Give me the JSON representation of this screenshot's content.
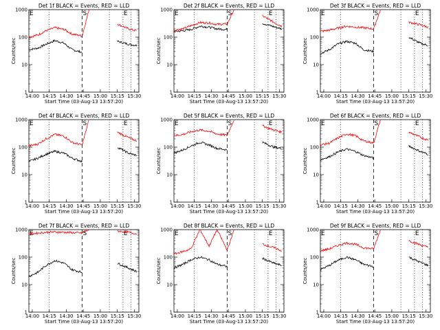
{
  "figure": {
    "xlabel": "Start Time (03-Aug-13 13:57:20)",
    "ylabel": "Counts/sec",
    "x_ticks": [
      "14:00",
      "14:15",
      "14:30",
      "14:45",
      "15:00",
      "15:15",
      "15:30"
    ],
    "y_ticks": [
      "1",
      "10",
      "100",
      "1000"
    ],
    "markers": [
      {
        "label": "E",
        "time": "13:57"
      },
      {
        "label": "S",
        "time": "14:44"
      },
      {
        "label": "E",
        "time": "15:20"
      }
    ],
    "colors": {
      "events": "#000000",
      "lld": "#ff0000",
      "axes": "#000000"
    }
  },
  "chart_data": [
    {
      "type": "line",
      "title": "Det 1f BLACK = Events, RED = LLD",
      "x": [
        "13:57",
        "14:05",
        "14:12",
        "14:20",
        "14:28",
        "14:35",
        "14:44",
        "14:50",
        "15:10",
        "15:15",
        "15:25",
        "15:32"
      ],
      "series": [
        {
          "name": "Events",
          "values": [
            35,
            40,
            55,
            75,
            60,
            35,
            28,
            null,
            null,
            70,
            55,
            50
          ]
        },
        {
          "name": "LLD",
          "values": [
            100,
            120,
            170,
            220,
            190,
            130,
            110,
            1000,
            null,
            300,
            200,
            170
          ]
        }
      ],
      "ylim": [
        1,
        1000
      ],
      "yscale": "log"
    },
    {
      "type": "line",
      "title": "Det 2f BLACK = Events, RED = LLD",
      "x": [
        "13:57",
        "14:05",
        "14:12",
        "14:20",
        "14:28",
        "14:35",
        "14:44",
        "14:50",
        "15:10",
        "15:15",
        "15:25",
        "15:32"
      ],
      "series": [
        {
          "name": "Events",
          "values": [
            160,
            170,
            190,
            250,
            230,
            200,
            190,
            null,
            null,
            320,
            240,
            200
          ]
        },
        {
          "name": "LLD",
          "values": [
            180,
            200,
            260,
            340,
            330,
            290,
            300,
            1000,
            null,
            600,
            350,
            250
          ]
        }
      ],
      "ylim": [
        1,
        1000
      ],
      "yscale": "log"
    },
    {
      "type": "line",
      "title": "Det 3f BLACK = Events, RED = LLD",
      "x": [
        "13:57",
        "14:05",
        "14:12",
        "14:20",
        "14:28",
        "14:35",
        "14:44",
        "14:50",
        "15:10",
        "15:15",
        "15:25",
        "15:32"
      ],
      "series": [
        {
          "name": "Events",
          "values": [
            25,
            35,
            55,
            70,
            60,
            35,
            30,
            null,
            null,
            100,
            60,
            50
          ]
        },
        {
          "name": "LLD",
          "values": [
            160,
            180,
            210,
            250,
            230,
            220,
            200,
            1000,
            null,
            350,
            280,
            230
          ]
        }
      ],
      "ylim": [
        1,
        1000
      ],
      "yscale": "log"
    },
    {
      "type": "line",
      "title": "Det 4f BLACK = Events, RED = LLD",
      "x": [
        "13:57",
        "14:05",
        "14:12",
        "14:20",
        "14:28",
        "14:35",
        "14:44",
        "14:50",
        "15:10",
        "15:15",
        "15:25",
        "15:32"
      ],
      "series": [
        {
          "name": "Events",
          "values": [
            30,
            40,
            55,
            70,
            60,
            40,
            30,
            null,
            null,
            100,
            60,
            50
          ]
        },
        {
          "name": "LLD",
          "values": [
            110,
            130,
            200,
            290,
            250,
            150,
            120,
            1000,
            null,
            350,
            220,
            170
          ]
        }
      ],
      "ylim": [
        1,
        1000
      ],
      "yscale": "log"
    },
    {
      "type": "line",
      "title": "Det 5f BLACK = Events, RED = LLD",
      "x": [
        "13:57",
        "14:05",
        "14:12",
        "14:20",
        "14:28",
        "14:35",
        "14:44",
        "14:50",
        "15:10",
        "15:15",
        "15:25",
        "15:32"
      ],
      "series": [
        {
          "name": "Events",
          "values": [
            60,
            80,
            110,
            150,
            120,
            90,
            80,
            null,
            null,
            150,
            100,
            90
          ]
        },
        {
          "name": "LLD",
          "values": [
            260,
            290,
            360,
            420,
            380,
            300,
            270,
            1000,
            null,
            600,
            420,
            350
          ]
        }
      ],
      "ylim": [
        1,
        1000
      ],
      "yscale": "log"
    },
    {
      "type": "line",
      "title": "Det 6f BLACK = Events, RED = LLD",
      "x": [
        "13:57",
        "14:05",
        "14:12",
        "14:20",
        "14:28",
        "14:35",
        "14:44",
        "14:50",
        "15:10",
        "15:15",
        "15:25",
        "15:32"
      ],
      "series": [
        {
          "name": "Events",
          "values": [
            35,
            45,
            65,
            85,
            70,
            50,
            40,
            null,
            null,
            110,
            70,
            55
          ]
        },
        {
          "name": "LLD",
          "values": [
            120,
            140,
            210,
            300,
            260,
            170,
            140,
            1000,
            null,
            350,
            230,
            180
          ]
        }
      ],
      "ylim": [
        1,
        1000
      ],
      "yscale": "log"
    },
    {
      "type": "line",
      "title": "Det 7f BLACK = Events, RED = LLD",
      "x": [
        "13:57",
        "14:05",
        "14:12",
        "14:20",
        "14:28",
        "14:35",
        "14:44",
        "14:50",
        "15:10",
        "15:15",
        "15:25",
        "15:32"
      ],
      "series": [
        {
          "name": "Events",
          "values": [
            20,
            28,
            50,
            75,
            60,
            35,
            28,
            null,
            null,
            60,
            40,
            30
          ]
        },
        {
          "name": "LLD",
          "values": [
            700,
            750,
            800,
            820,
            800,
            780,
            750,
            1000,
            null,
            900,
            800,
            700
          ]
        }
      ],
      "ylim": [
        1,
        1000
      ],
      "yscale": "log"
    },
    {
      "type": "line",
      "title": "Det 8f BLACK = Events, RED = LLD",
      "x": [
        "13:57",
        "14:05",
        "14:12",
        "14:20",
        "14:28",
        "14:35",
        "14:44",
        "14:50",
        "15:10",
        "15:15",
        "15:25",
        "15:32"
      ],
      "series": [
        {
          "name": "Events",
          "values": [
            40,
            55,
            80,
            100,
            80,
            55,
            45,
            null,
            null,
            90,
            60,
            50
          ]
        },
        {
          "name": "LLD",
          "values": [
            130,
            160,
            200,
            1000,
            250,
            1000,
            180,
            1000,
            null,
            300,
            220,
            170
          ]
        }
      ],
      "ylim": [
        1,
        1000
      ],
      "yscale": "log"
    },
    {
      "type": "line",
      "title": "Det 9f BLACK = Events, RED = LLD",
      "x": [
        "13:57",
        "14:05",
        "14:12",
        "14:20",
        "14:28",
        "14:35",
        "14:44",
        "14:50",
        "15:10",
        "15:15",
        "15:25",
        "15:32"
      ],
      "series": [
        {
          "name": "Events",
          "values": [
            35,
            50,
            75,
            100,
            80,
            55,
            45,
            null,
            null,
            100,
            65,
            50
          ]
        },
        {
          "name": "LLD",
          "values": [
            170,
            200,
            260,
            330,
            290,
            220,
            200,
            1000,
            null,
            400,
            280,
            230
          ]
        }
      ],
      "ylim": [
        1,
        1000
      ],
      "yscale": "log"
    }
  ]
}
